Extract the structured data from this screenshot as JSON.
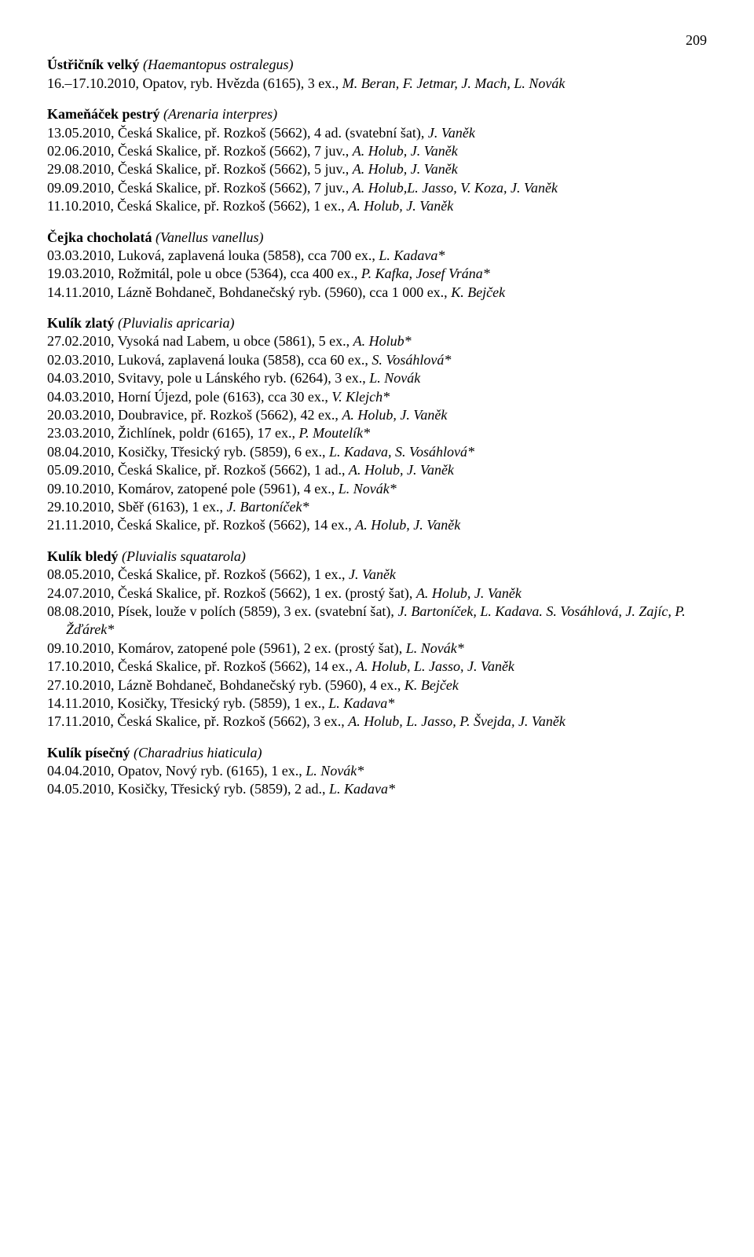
{
  "page_number": "209",
  "blocks": [
    {
      "title_bold": "Ústřičník velký ",
      "title_latin": "(Haemantopus ostralegus)",
      "records": [
        {
          "segments": [
            {
              "text": "16.–17.10.2010, Opatov, ryb. Hvězda (6165), 3 ex., ",
              "italic": false
            },
            {
              "text": "M. Beran, F. Jetmar, J. Mach, L. Novák",
              "italic": true
            }
          ]
        }
      ]
    },
    {
      "title_bold": "Kameňáček pestrý ",
      "title_latin": "(Arenaria interpres)",
      "records": [
        {
          "segments": [
            {
              "text": "13.05.2010, Česká Skalice, př. Rozkoš (5662), 4 ad. (svatební šat), ",
              "italic": false
            },
            {
              "text": "J. Vaněk",
              "italic": true
            }
          ]
        },
        {
          "segments": [
            {
              "text": "02.06.2010, Česká Skalice, př. Rozkoš (5662), 7 juv., ",
              "italic": false
            },
            {
              "text": "A. Holub, J. Vaněk",
              "italic": true
            }
          ]
        },
        {
          "segments": [
            {
              "text": "29.08.2010, Česká Skalice, př. Rozkoš (5662), 5 juv., ",
              "italic": false
            },
            {
              "text": "A. Holub, J. Vaněk",
              "italic": true
            }
          ]
        },
        {
          "segments": [
            {
              "text": "09.09.2010, Česká Skalice, př. Rozkoš (5662), 7 juv., ",
              "italic": false
            },
            {
              "text": "A. Holub,L. Jasso, V. Koza, J. Vaněk",
              "italic": true
            }
          ]
        },
        {
          "segments": [
            {
              "text": "11.10.2010, Česká Skalice, př. Rozkoš (5662), 1 ex., ",
              "italic": false
            },
            {
              "text": "A. Holub, J. Vaněk",
              "italic": true
            }
          ]
        }
      ]
    },
    {
      "title_bold": "Čejka chocholatá ",
      "title_latin": "(Vanellus vanellus)",
      "records": [
        {
          "segments": [
            {
              "text": "03.03.2010, Luková, zaplavená louka (5858), cca 700 ex., ",
              "italic": false
            },
            {
              "text": "L. Kadava*",
              "italic": true
            }
          ]
        },
        {
          "segments": [
            {
              "text": "19.03.2010, Rožmitál, pole u obce (5364), cca 400 ex., ",
              "italic": false
            },
            {
              "text": "P. Kafka",
              "italic": true
            },
            {
              "text": ", ",
              "italic": false
            },
            {
              "text": "Josef Vrána*",
              "italic": true
            }
          ]
        },
        {
          "segments": [
            {
              "text": "14.11.2010, Lázně Bohdaneč, Bohdanečský ryb. (5960), cca 1 000 ex., ",
              "italic": false
            },
            {
              "text": "K. Bejček",
              "italic": true
            }
          ]
        }
      ]
    },
    {
      "title_bold": "Kulík zlatý ",
      "title_latin": "(Pluvialis apricaria)",
      "records": [
        {
          "segments": [
            {
              "text": "27.02.2010, Vysoká nad Labem, u obce (5861), 5 ex., ",
              "italic": false
            },
            {
              "text": "A. Holub*",
              "italic": true
            }
          ]
        },
        {
          "segments": [
            {
              "text": "02.03.2010, Luková, zaplavená louka (5858), cca 60 ex., ",
              "italic": false
            },
            {
              "text": "S. Vosáhlová*",
              "italic": true
            }
          ]
        },
        {
          "segments": [
            {
              "text": "04.03.2010, Svitavy, pole u Lánského ryb. (6264), 3 ex., ",
              "italic": false
            },
            {
              "text": "L. Novák",
              "italic": true
            }
          ]
        },
        {
          "segments": [
            {
              "text": "04.03.2010, Horní Újezd, pole (6163), cca 30 ex., ",
              "italic": false
            },
            {
              "text": "V. Klejch*",
              "italic": true
            }
          ]
        },
        {
          "segments": [
            {
              "text": "20.03.2010, Doubravice, př. Rozkoš (5662), 42 ex., ",
              "italic": false
            },
            {
              "text": "A. Holub, J. Vaněk",
              "italic": true
            }
          ]
        },
        {
          "segments": [
            {
              "text": "23.03.2010, Žichlínek, poldr (6165), 17 ex., ",
              "italic": false
            },
            {
              "text": "P. Moutelík*",
              "italic": true
            }
          ]
        },
        {
          "segments": [
            {
              "text": "08.04.2010, Kosičky, Třesický ryb. (5859), 6 ex., ",
              "italic": false
            },
            {
              "text": "L. Kadava, S. Vosáhlová*",
              "italic": true
            }
          ]
        },
        {
          "segments": [
            {
              "text": "05.09.2010, Česká Skalice, př. Rozkoš (5662), 1 ad., ",
              "italic": false
            },
            {
              "text": "A. Holub, J. Vaněk",
              "italic": true
            }
          ]
        },
        {
          "segments": [
            {
              "text": "09.10.2010, Komárov, zatopené pole (5961), 4 ex., ",
              "italic": false
            },
            {
              "text": "L. Novák*",
              "italic": true
            }
          ]
        },
        {
          "segments": [
            {
              "text": "29.10.2010, Sběř (6163), 1 ex., ",
              "italic": false
            },
            {
              "text": "J. Bartoníček*",
              "italic": true
            }
          ]
        },
        {
          "segments": [
            {
              "text": "21.11.2010, Česká Skalice, př. Rozkoš (5662), 14 ex., ",
              "italic": false
            },
            {
              "text": "A. Holub, J. Vaněk",
              "italic": true
            }
          ]
        }
      ]
    },
    {
      "title_bold": "Kulík bledý ",
      "title_latin": "(Pluvialis squatarola)",
      "records": [
        {
          "segments": [
            {
              "text": "08.05.2010, Česká Skalice, př. Rozkoš (5662), 1 ex., ",
              "italic": false
            },
            {
              "text": "J. Vaněk",
              "italic": true
            }
          ]
        },
        {
          "segments": [
            {
              "text": "24.07.2010, Česká Skalice, př. Rozkoš (5662), 1 ex. (prostý šat), ",
              "italic": false
            },
            {
              "text": "A. Holub, J. Vaněk",
              "italic": true
            }
          ]
        },
        {
          "segments": [
            {
              "text": "08.08.2010, Písek, louže v polích (5859), 3 ex. (svatební šat), ",
              "italic": false
            },
            {
              "text": "J. Bartoníček, L. Kadava. S. Vosáhlová, J. Zajíc, P. Žďárek*",
              "italic": true
            }
          ]
        },
        {
          "segments": [
            {
              "text": "09.10.2010, Komárov, zatopené pole (5961), 2 ex. (prostý šat), ",
              "italic": false
            },
            {
              "text": "L. Novák*",
              "italic": true
            }
          ]
        },
        {
          "segments": [
            {
              "text": "17.10.2010, Česká Skalice, př. Rozkoš (5662), 14 ex., ",
              "italic": false
            },
            {
              "text": "A. Holub, L. Jasso, J. Vaněk",
              "italic": true
            }
          ]
        },
        {
          "segments": [
            {
              "text": "27.10.2010, Lázně Bohdaneč, Bohdanečský ryb. (5960), 4 ex., ",
              "italic": false
            },
            {
              "text": "K. Bejček",
              "italic": true
            }
          ]
        },
        {
          "segments": [
            {
              "text": "14.11.2010, Kosičky, Třesický ryb. (5859), 1 ex., ",
              "italic": false
            },
            {
              "text": "L. Kadava*",
              "italic": true
            }
          ]
        },
        {
          "segments": [
            {
              "text": "17.11.2010, Česká Skalice, př. Rozkoš (5662), 3 ex., ",
              "italic": false
            },
            {
              "text": "A. Holub, L. Jasso, P. Švejda, J. Vaněk",
              "italic": true
            }
          ]
        }
      ]
    },
    {
      "title_bold": "Kulík písečný ",
      "title_latin": "(Charadrius hiaticula)",
      "records": [
        {
          "segments": [
            {
              "text": "04.04.2010, Opatov, Nový ryb. (6165), 1 ex., ",
              "italic": false
            },
            {
              "text": "L. Novák*",
              "italic": true
            }
          ]
        },
        {
          "segments": [
            {
              "text": "04.05.2010, Kosičky, Třesický ryb. (5859), 2 ad., ",
              "italic": false
            },
            {
              "text": "L. Kadava*",
              "italic": true
            }
          ]
        }
      ]
    }
  ]
}
